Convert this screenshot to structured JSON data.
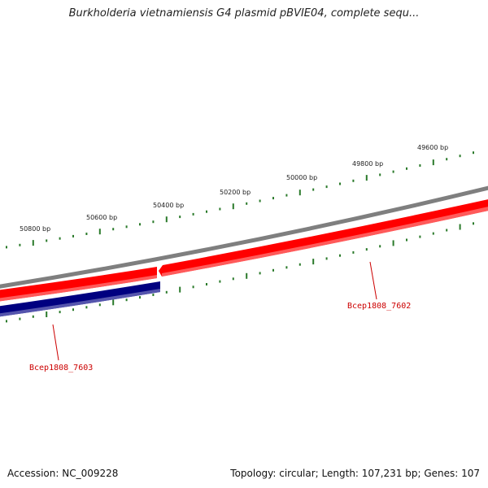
{
  "title": "Burkholderia vietnamiensis G4 plasmid pBVIE04, complete sequ...",
  "footer": {
    "accession": "Accession: NC_009228",
    "summary": "Topology: circular; Length: 107,231 bp; Genes: 107"
  },
  "scale_labels": [
    "50800 bp",
    "50600 bp",
    "50400 bp",
    "50200 bp",
    "50000 bp",
    "49800 bp",
    "49600 bp"
  ],
  "genes": [
    {
      "name": "Bcep1808_7602",
      "strand": "forward",
      "color": "#ff0000"
    },
    {
      "name": "Bcep1808_7603",
      "strand": "reverse",
      "color": "#000080"
    }
  ],
  "colors": {
    "backbone": "#808080",
    "tick": "#2a7a2a",
    "forward_gene": "#ff0000",
    "reverse_gene": "#000080",
    "label": "#cc0000"
  }
}
